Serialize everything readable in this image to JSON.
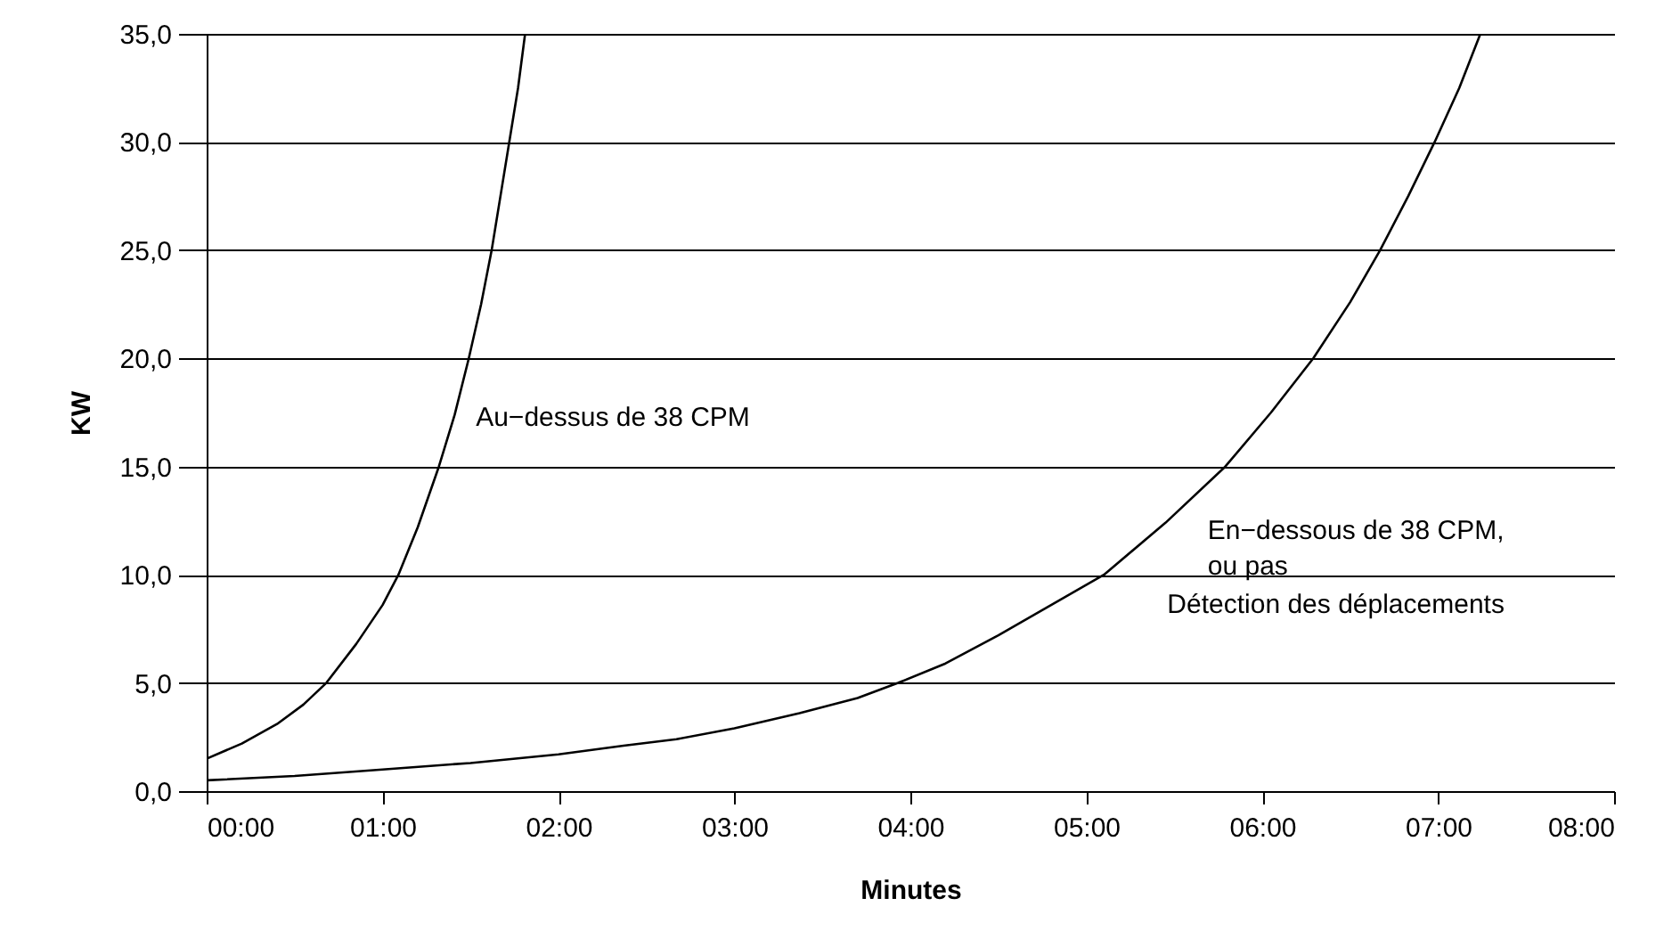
{
  "chart_data": {
    "type": "line",
    "xlabel": "Minutes",
    "ylabel": "KW",
    "grid": "y",
    "xlim": [
      0,
      8
    ],
    "ylim": [
      0,
      35
    ],
    "xticks": [
      {
        "value": 0,
        "label": "00:00"
      },
      {
        "value": 1,
        "label": "01:00"
      },
      {
        "value": 2,
        "label": "02:00"
      },
      {
        "value": 3,
        "label": "03:00"
      },
      {
        "value": 4,
        "label": "04:00"
      },
      {
        "value": 5,
        "label": "05:00"
      },
      {
        "value": 6,
        "label": "06:00"
      },
      {
        "value": 7,
        "label": "07:00"
      },
      {
        "value": 8,
        "label": "08:00"
      }
    ],
    "yticks": [
      {
        "value": 0,
        "label": "0,0"
      },
      {
        "value": 5,
        "label": "5,0"
      },
      {
        "value": 10,
        "label": "10,0"
      },
      {
        "value": 15,
        "label": "15,0"
      },
      {
        "value": 20,
        "label": "20,0"
      },
      {
        "value": 25,
        "label": "25,0"
      },
      {
        "value": 30,
        "label": "30,0"
      },
      {
        "value": 35,
        "label": "35,0"
      }
    ],
    "series": [
      {
        "name": "Au−dessus de 38 CPM",
        "color": "#000000",
        "x": [
          0,
          0.2,
          0.4,
          0.55,
          0.68,
          0.85,
          1.0,
          1.09,
          1.2,
          1.32,
          1.41,
          1.49,
          1.56,
          1.62,
          1.67,
          1.72,
          1.77,
          1.81
        ],
        "values": [
          1.5,
          2.2,
          3.1,
          4.0,
          5,
          6.8,
          8.6,
          10,
          12.2,
          15,
          17.4,
          20,
          22.5,
          25,
          27.5,
          30,
          32.5,
          35
        ]
      },
      {
        "name": "En−dessous de 38 CPM, ou pas",
        "color": "#000000",
        "x": [
          0,
          0.5,
          1,
          1.5,
          2,
          2.37,
          2.67,
          3.0,
          3.37,
          3.7,
          3.93,
          4.2,
          4.5,
          4.8,
          5.1,
          5.45,
          5.79,
          6.05,
          6.29,
          6.5,
          6.67,
          6.83,
          6.98,
          7.12,
          7.24
        ],
        "values": [
          0.5,
          0.7,
          1.0,
          1.3,
          1.7,
          2.1,
          2.4,
          2.9,
          3.6,
          4.3,
          5,
          5.9,
          7.2,
          8.6,
          10,
          12.4,
          15,
          17.5,
          20,
          22.6,
          25,
          27.5,
          30,
          32.5,
          35
        ]
      }
    ],
    "annotations": [
      "Détection des déplacements"
    ]
  }
}
